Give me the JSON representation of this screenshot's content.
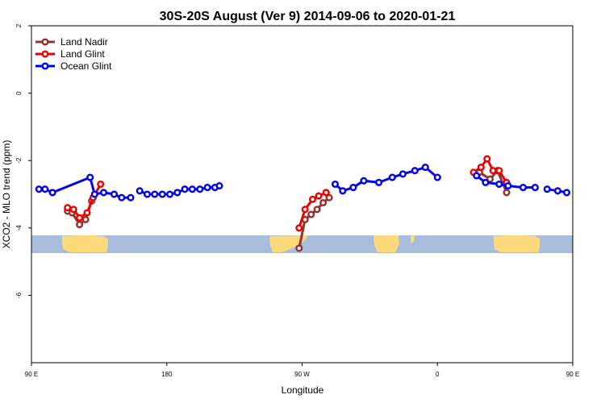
{
  "chart_data": {
    "type": "line",
    "title": "30S-20S August (Ver 9)   2014-09-06 to 2020-01-21",
    "xlabel": "Longitude",
    "ylabel": "XCO2 - MLO trend (ppm)",
    "xlim": [
      90,
      450
    ],
    "ylim": [
      -8,
      2
    ],
    "x_ticks": [
      {
        "value": 90,
        "label": "90 E"
      },
      {
        "value": 180,
        "label": "180"
      },
      {
        "value": 270,
        "label": "90 W"
      },
      {
        "value": 360,
        "label": "0"
      },
      {
        "value": 450,
        "label": "90 E"
      },
      {
        "value": 540,
        "label": "180"
      }
    ],
    "y_ticks": [
      {
        "value": 2,
        "label": "2"
      },
      {
        "value": 0,
        "label": "0"
      },
      {
        "value": -2,
        "label": "-2"
      },
      {
        "value": -4,
        "label": "-4"
      },
      {
        "value": -6,
        "label": "-6"
      }
    ],
    "map_strip": {
      "y_top": -4.05,
      "y_bottom": -4.6,
      "ocean_color": "#a8bcdc",
      "land_color": "#fcd97a"
    },
    "legend_position": "top-left",
    "series": [
      {
        "name": "Land Nadir",
        "color": "#943232",
        "segments": [
          {
            "x": [
              114,
              117,
              122,
              126,
              130
            ],
            "y": [
              -3.5,
              -3.55,
              -3.9,
              -3.75,
              -3.2
            ]
          },
          {
            "x": [
              268,
              272,
              276,
              280,
              284,
              288
            ],
            "y": [
              -4.6,
              -3.75,
              -3.6,
              -3.45,
              -3.25,
              -3.1
            ]
          },
          {
            "x": [
              388,
              395,
              400,
              406
            ],
            "y": [
              -2.35,
              -2.55,
              -2.3,
              -2.95
            ]
          },
          {
            "x": [
              474,
              478,
              483,
              487,
              491
            ],
            "y": [
              -3.5,
              -3.55,
              -3.9,
              -3.75,
              -3.2
            ]
          }
        ]
      },
      {
        "name": "Land Glint",
        "color": "#ee0000",
        "segments": [
          {
            "x": [
              114,
              118,
              122,
              127,
              131,
              136
            ],
            "y": [
              -3.4,
              -3.45,
              -3.7,
              -3.55,
              -3.1,
              -2.7
            ]
          },
          {
            "x": [
              268,
              272,
              277,
              281,
              286
            ],
            "y": [
              -4.0,
              -3.45,
              -3.15,
              -3.05,
              -2.95
            ]
          },
          {
            "x": [
              384,
              389,
              393,
              397,
              401,
              406
            ],
            "y": [
              -2.35,
              -2.2,
              -1.95,
              -2.3,
              -2.3,
              -2.65
            ]
          },
          {
            "x": [
              474,
              478,
              483,
              487,
              491,
              496
            ],
            "y": [
              -3.4,
              -3.45,
              -3.7,
              -3.55,
              -3.1,
              -2.7
            ]
          }
        ]
      },
      {
        "name": "Ocean Glint",
        "color": "#0000ee",
        "segments": [
          {
            "x": [
              95,
              99,
              104,
              129,
              132,
              138,
              145,
              150,
              156
            ],
            "y": [
              -2.85,
              -2.85,
              -2.95,
              -2.5,
              -3.0,
              -2.95,
              -3.0,
              -3.1,
              -3.1
            ]
          },
          {
            "x": [
              162,
              167,
              172,
              177,
              182,
              187,
              192,
              197,
              202,
              207,
              212,
              215
            ],
            "y": [
              -2.9,
              -3.0,
              -3.0,
              -3.0,
              -3.0,
              -2.95,
              -2.85,
              -2.85,
              -2.85,
              -2.8,
              -2.8,
              -2.75
            ]
          },
          {
            "x": [
              292,
              297,
              304,
              311,
              321,
              330,
              337,
              345,
              352,
              360
            ],
            "y": [
              -2.7,
              -2.9,
              -2.8,
              -2.6,
              -2.65,
              -2.5,
              -2.4,
              -2.3,
              -2.2,
              -2.5
            ]
          },
          {
            "x": [
              386,
              392,
              401,
              407,
              417,
              425
            ],
            "y": [
              -2.45,
              -2.65,
              -2.7,
              -2.75,
              -2.8,
              -2.8
            ]
          },
          {
            "x": [
              433,
              440,
              446
            ],
            "y": [
              -2.85,
              -2.9,
              -2.95
            ]
          },
          {
            "x": [
              489,
              492,
              496,
              503,
              507
            ],
            "y": [
              -2.5,
              -3.0,
              -2.9,
              -2.95,
              -2.95
            ]
          }
        ]
      }
    ]
  }
}
